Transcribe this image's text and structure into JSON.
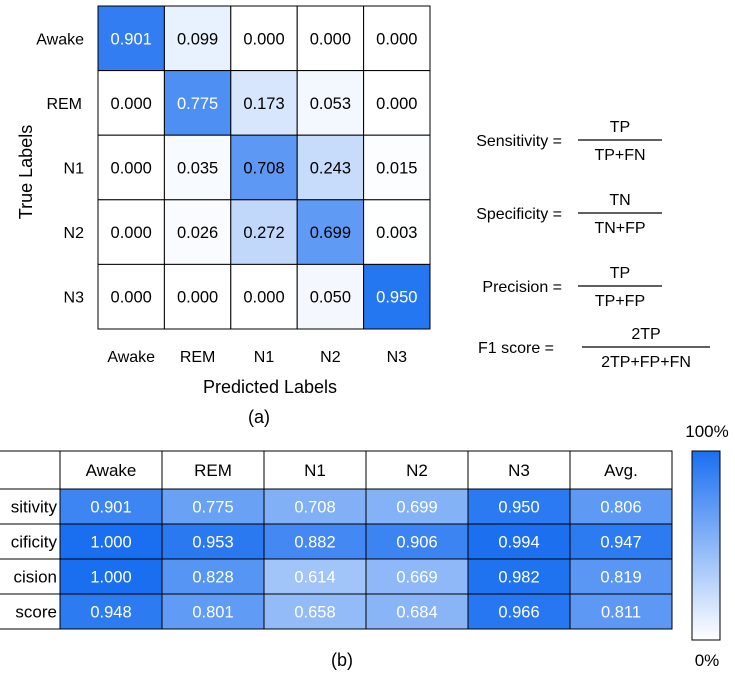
{
  "chart_data": [
    {
      "type": "heatmap",
      "ylabel": "True Labels",
      "xlabel": "Predicted Labels",
      "rows": [
        "Awake",
        "REM",
        "N1",
        "N2",
        "N3"
      ],
      "columns": [
        "Awake",
        "REM",
        "N1",
        "N2",
        "N3"
      ],
      "values": [
        [
          "0.901",
          "0.099",
          "0.000",
          "0.000",
          "0.000"
        ],
        [
          "0.000",
          "0.775",
          "0.173",
          "0.053",
          "0.000"
        ],
        [
          "0.000",
          "0.035",
          "0.708",
          "0.243",
          "0.015"
        ],
        [
          "0.000",
          "0.026",
          "0.272",
          "0.699",
          "0.003"
        ],
        [
          "0.000",
          "0.000",
          "0.000",
          "0.050",
          "0.950"
        ]
      ],
      "caption": "(a)",
      "color_min": "#ffffff",
      "color_max": "#1a6ff0"
    },
    {
      "type": "table",
      "columns": [
        "Awake",
        "REM",
        "N1",
        "N2",
        "N3",
        "Avg."
      ],
      "rows": [
        "sitivity",
        "cificity",
        "cision",
        "score"
      ],
      "values": [
        [
          "0.901",
          "0.775",
          "0.708",
          "0.699",
          "0.950",
          "0.806"
        ],
        [
          "1.000",
          "0.953",
          "0.882",
          "0.906",
          "0.994",
          "0.947"
        ],
        [
          "1.000",
          "0.828",
          "0.614",
          "0.669",
          "0.982",
          "0.819"
        ],
        [
          "0.948",
          "0.801",
          "0.658",
          "0.684",
          "0.966",
          "0.811"
        ]
      ],
      "caption": "(b)"
    }
  ],
  "formulas": [
    {
      "lhs": "Sensitivity =",
      "num": "TP",
      "den": "TP+FN"
    },
    {
      "lhs": "Specificity =",
      "num": "TN",
      "den": "TN+FP"
    },
    {
      "lhs": "Precision =",
      "num": "TP",
      "den": "TP+FP"
    },
    {
      "lhs": "F1 score =",
      "num": "2TP",
      "den": "2TP+FP+FN"
    }
  ],
  "colorbar": {
    "max_label": "100%",
    "min_label": "0%"
  }
}
